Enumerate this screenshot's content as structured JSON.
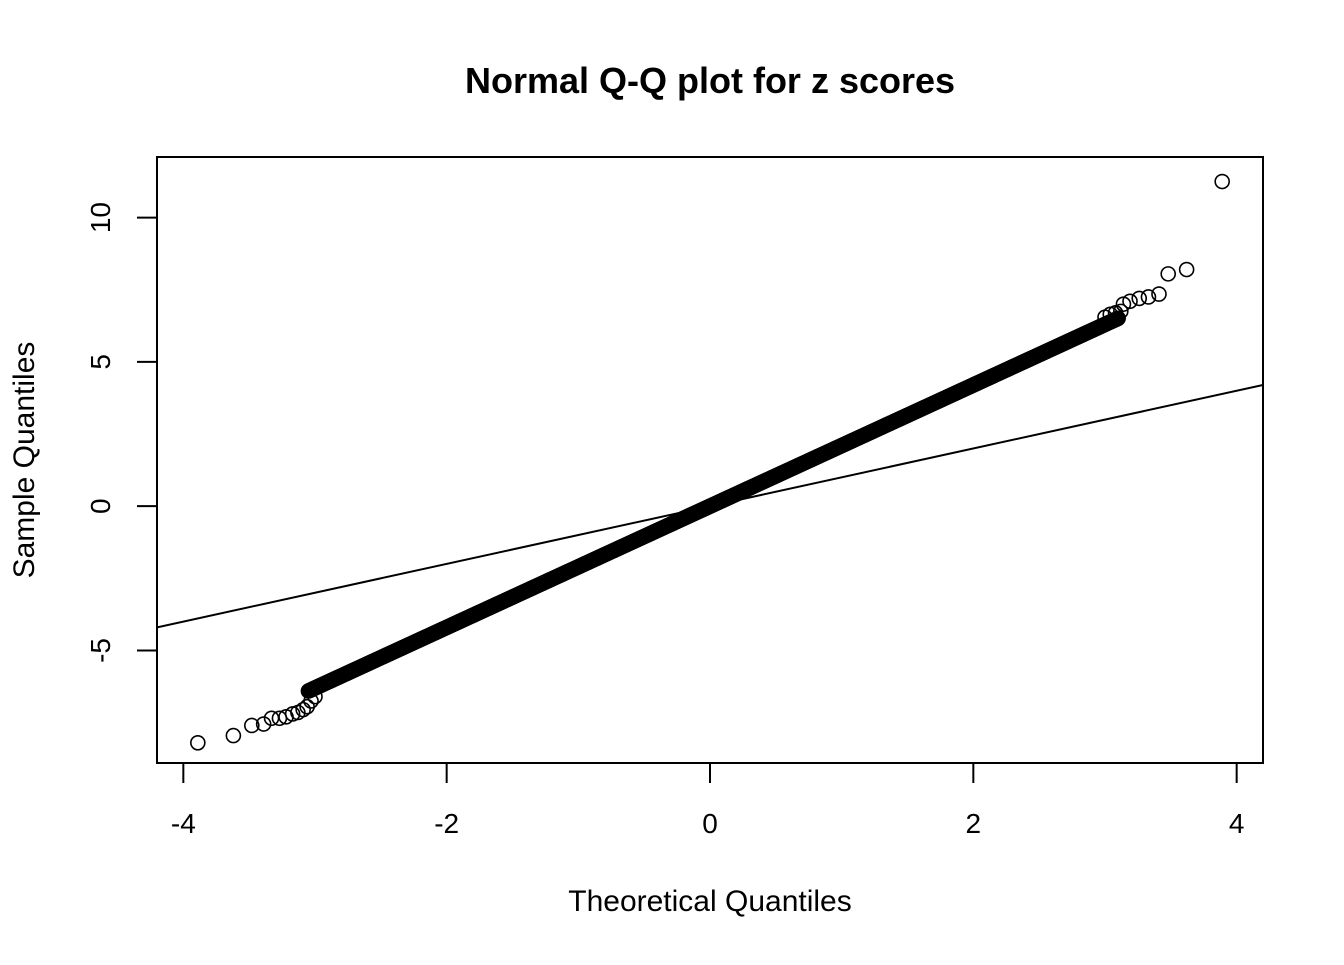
{
  "chart_data": {
    "type": "scatter",
    "title": "Normal Q-Q plot for z scores",
    "xlabel": "Theoretical Quantiles",
    "ylabel": "Sample Quantiles",
    "xlim": [
      -4.2,
      4.2
    ],
    "ylim": [
      -8.9,
      12.1
    ],
    "x_ticks": [
      -4,
      -2,
      0,
      2,
      4
    ],
    "y_ticks": [
      -5,
      0,
      5,
      10
    ],
    "x_tick_labels": [
      "-4",
      "-2",
      "0",
      "2",
      "4"
    ],
    "y_tick_labels": [
      "-5",
      "0",
      "5",
      "10"
    ],
    "grid": false,
    "legend": "none",
    "marker": "open-circle",
    "reference_line": {
      "slope": 1.0,
      "intercept": 0.0
    },
    "main_trend": {
      "slope": 2.1,
      "intercept": 0.0,
      "x_range": [
        -3.05,
        3.1
      ]
    },
    "points": [
      {
        "x": -3.89,
        "y": -8.2
      },
      {
        "x": -3.62,
        "y": -7.95
      },
      {
        "x": -3.48,
        "y": -7.6
      },
      {
        "x": -3.39,
        "y": -7.55
      },
      {
        "x": -3.33,
        "y": -7.35
      },
      {
        "x": -3.27,
        "y": -7.35
      },
      {
        "x": -3.22,
        "y": -7.3
      },
      {
        "x": -3.17,
        "y": -7.2
      },
      {
        "x": -3.13,
        "y": -7.15
      },
      {
        "x": -3.09,
        "y": -7.05
      },
      {
        "x": -3.06,
        "y": -6.95
      },
      {
        "x": -3.03,
        "y": -6.75
      },
      {
        "x": -3.0,
        "y": -6.6
      },
      {
        "x": 3.0,
        "y": 6.55
      },
      {
        "x": 3.04,
        "y": 6.65
      },
      {
        "x": 3.08,
        "y": 6.7
      },
      {
        "x": 3.12,
        "y": 6.75
      },
      {
        "x": 3.14,
        "y": 7.0
      },
      {
        "x": 3.19,
        "y": 7.1
      },
      {
        "x": 3.26,
        "y": 7.2
      },
      {
        "x": 3.33,
        "y": 7.25
      },
      {
        "x": 3.41,
        "y": 7.35
      },
      {
        "x": 3.48,
        "y": 8.05
      },
      {
        "x": 3.62,
        "y": 8.2
      },
      {
        "x": 3.89,
        "y": 11.25
      }
    ]
  }
}
